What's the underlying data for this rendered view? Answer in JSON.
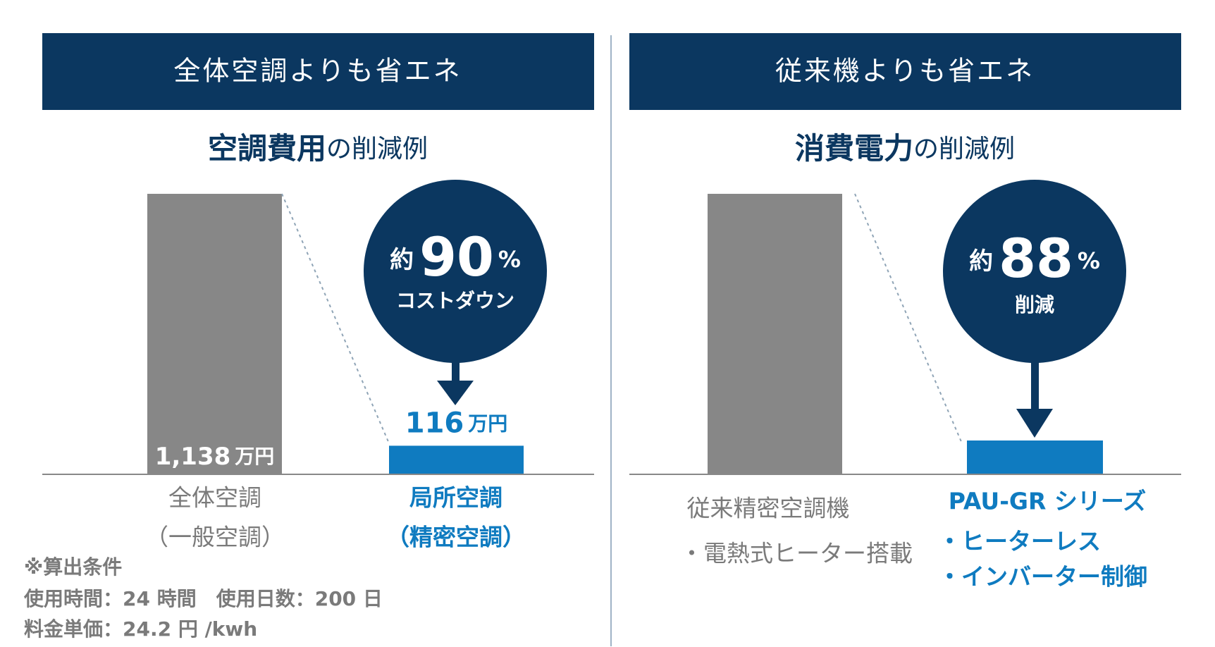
{
  "left": {
    "header": "全体空調よりも省エネ",
    "subtitle_bold": "空調費用",
    "subtitle_rest": "の削減例",
    "badge": {
      "prefix": "約",
      "number": "90",
      "unit": "%",
      "caption": "コストダウン"
    },
    "bars": [
      {
        "value": 1138,
        "value_label": "1,138",
        "unit": "万円",
        "label_lines": [
          "全体空調",
          "（一般空調）"
        ]
      },
      {
        "value": 116,
        "value_label": "116",
        "unit": "万円",
        "label_lines": [
          "局所空調",
          "（精密空調）"
        ]
      }
    ],
    "notes": [
      "※算出条件",
      "使用時間：24 時間　使用日数：200 日",
      "料金単価：24.2 円 /kwh"
    ]
  },
  "right": {
    "header": "従来機よりも省エネ",
    "subtitle_bold": "消費電力",
    "subtitle_rest": "の削減例",
    "badge": {
      "prefix": "約",
      "number": "88",
      "unit": "%",
      "caption": "削減"
    },
    "bars": [
      {
        "label": "従来精密空調機",
        "features": [
          "・電熱式ヒーター搭載"
        ]
      },
      {
        "label": "PAU-GR シリーズ",
        "features": [
          "・ヒーターレス",
          "・インバーター制御"
        ]
      }
    ]
  }
}
